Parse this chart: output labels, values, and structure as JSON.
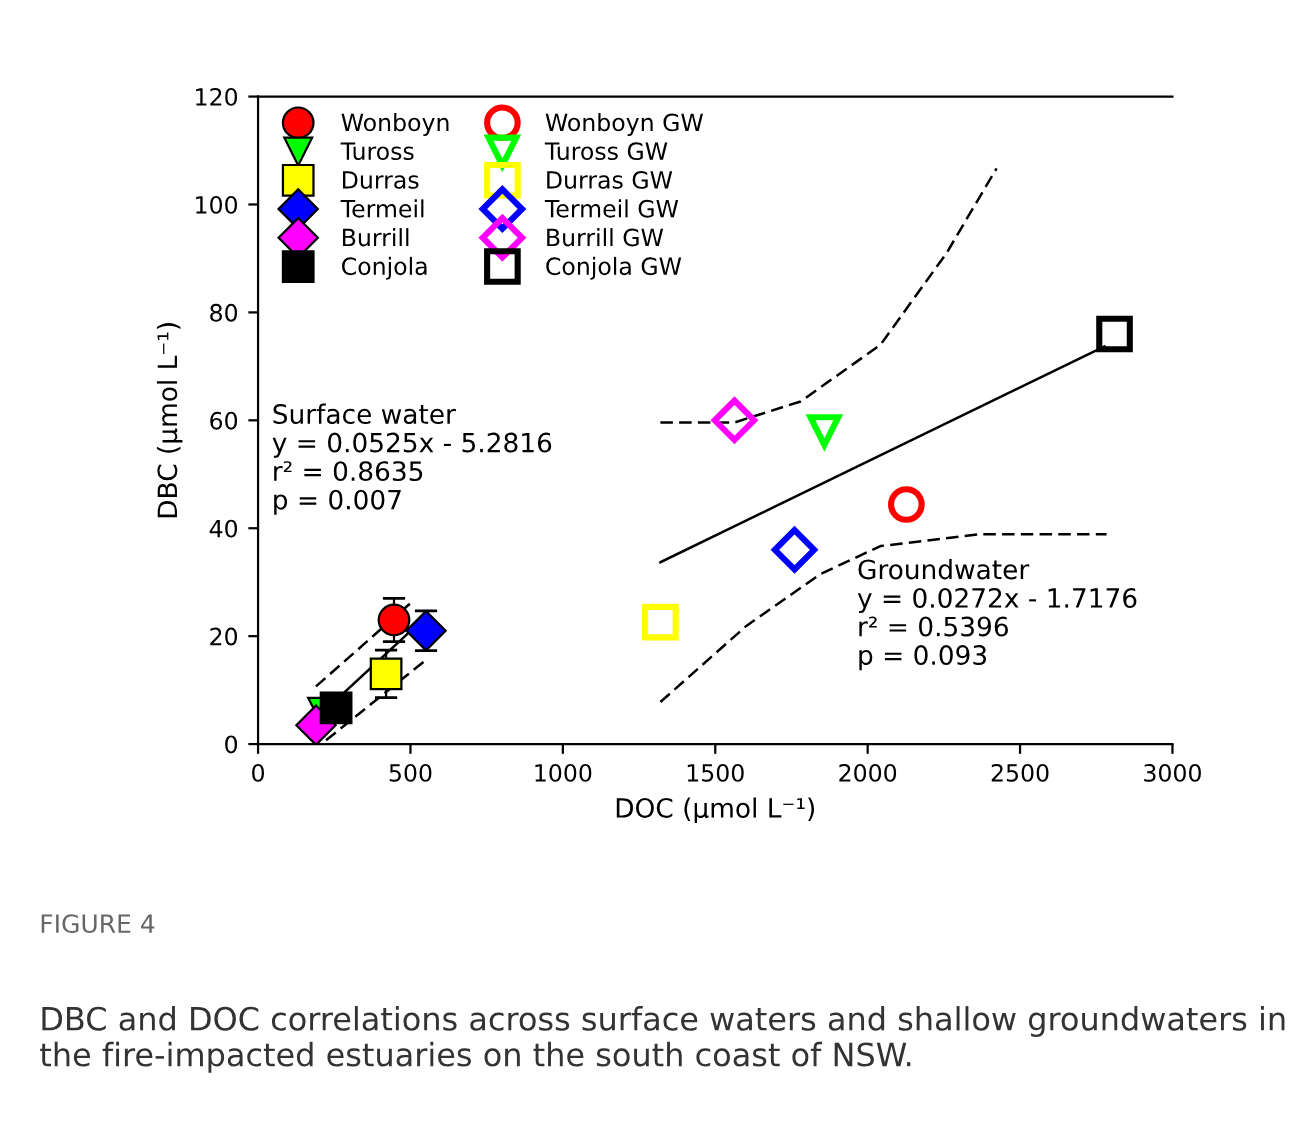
{
  "chart_data": {
    "type": "scatter",
    "xlabel": "DOC (µmol L⁻¹)",
    "ylabel": "DBC (µmol L⁻¹)",
    "xlim": [
      0,
      3000
    ],
    "xticks": [
      0,
      500,
      1000,
      1500,
      2000,
      2500,
      3000
    ],
    "ylim": [
      0,
      120
    ],
    "yticks": [
      0,
      20,
      40,
      60,
      80,
      100,
      120
    ],
    "grid": false,
    "legend": "top left",
    "series": [
      {
        "name": "Wonboyn",
        "color": "#ff0000",
        "marker": "circle",
        "x": [
          446
        ],
        "values": [
          23
        ],
        "errors": [
          4
        ]
      },
      {
        "name": "Tuross",
        "color": "#00ff00",
        "marker": "triangle",
        "x": [
          210
        ],
        "values": [
          6
        ],
        "errors": [
          null
        ]
      },
      {
        "name": "Durras",
        "color": "#ffff00",
        "marker": "square",
        "x": [
          420
        ],
        "values": [
          13
        ],
        "errors": [
          4.4
        ]
      },
      {
        "name": "Termeil",
        "color": "#0000ff",
        "marker": "diamond",
        "x": [
          551
        ],
        "values": [
          21
        ],
        "errors": [
          3.7
        ]
      },
      {
        "name": "Burrill",
        "color": "#ff00ff",
        "marker": "diamond",
        "x": [
          190
        ],
        "values": [
          3.5
        ],
        "errors": [
          null
        ]
      },
      {
        "name": "Conjola",
        "color": "#000000",
        "marker": "square",
        "x": [
          256
        ],
        "values": [
          6.7
        ],
        "errors": [
          null
        ]
      },
      {
        "name": "Wonboyn GW",
        "color": "#ff0000",
        "marker": "circle",
        "x": [
          2127
        ],
        "values": [
          44.4
        ]
      },
      {
        "name": "Tuross GW",
        "color": "#00ff00",
        "marker": "triangle",
        "x": [
          1858
        ],
        "values": [
          58
        ]
      },
      {
        "name": "Durras GW",
        "color": "#ffff00",
        "marker": "square",
        "x": [
          1320
        ],
        "values": [
          22.6
        ]
      },
      {
        "name": "Termeil GW",
        "color": "#0000ff",
        "marker": "diamond",
        "x": [
          1760
        ],
        "values": [
          36
        ]
      },
      {
        "name": "Burrill GW",
        "color": "#ff00ff",
        "marker": "diamond",
        "x": [
          1563
        ],
        "values": [
          60
        ]
      },
      {
        "name": "Conjola GW",
        "color": "#000000",
        "marker": "square",
        "x": [
          2810
        ],
        "values": [
          76
        ]
      },
      {
        "type": "line",
        "color": "#000000",
        "line_style": "solid",
        "x": [
          190,
          551
        ],
        "values": [
          4.7,
          23.6
        ]
      },
      {
        "type": "line",
        "color": "#000000",
        "line_style": "dashed",
        "x": [
          190,
          512
        ],
        "values": [
          10.7,
          26.7
        ]
      },
      {
        "type": "line",
        "color": "#000000",
        "line_style": "dashed",
        "x": [
          223,
          551
        ],
        "values": [
          0.7,
          15.6
        ]
      },
      {
        "type": "line",
        "color": "#000000",
        "line_style": "solid",
        "x": [
          1320,
          2777
        ],
        "values": [
          33.7,
          73.7
        ]
      },
      {
        "type": "line",
        "color": "#000000",
        "line_style": "dashed",
        "x": [
          1320,
          1563,
          1780,
          2042,
          2259,
          2423
        ],
        "values": [
          59.6,
          59.6,
          63.5,
          74,
          91,
          106.7
        ]
      },
      {
        "type": "line",
        "color": "#000000",
        "line_style": "dashed",
        "x": [
          1320,
          1602,
          1845,
          2042,
          2370,
          2784
        ],
        "values": [
          7.8,
          21.9,
          31.5,
          36.7,
          38.9,
          38.9
        ]
      }
    ],
    "annotations": [
      "Surface water\ny = 0.0525x - 5.2816\nr² = 0.8635\np = 0.007",
      "Groundwater\ny = 0.0272x - 1.7176\nr² = 0.5396\np = 0.093",
      "FIGURE 4",
      "DBC and DOC correlations across surface waters and shallow groundwaters in the fire-impacted estuaries on the south coast of NSW."
    ]
  }
}
